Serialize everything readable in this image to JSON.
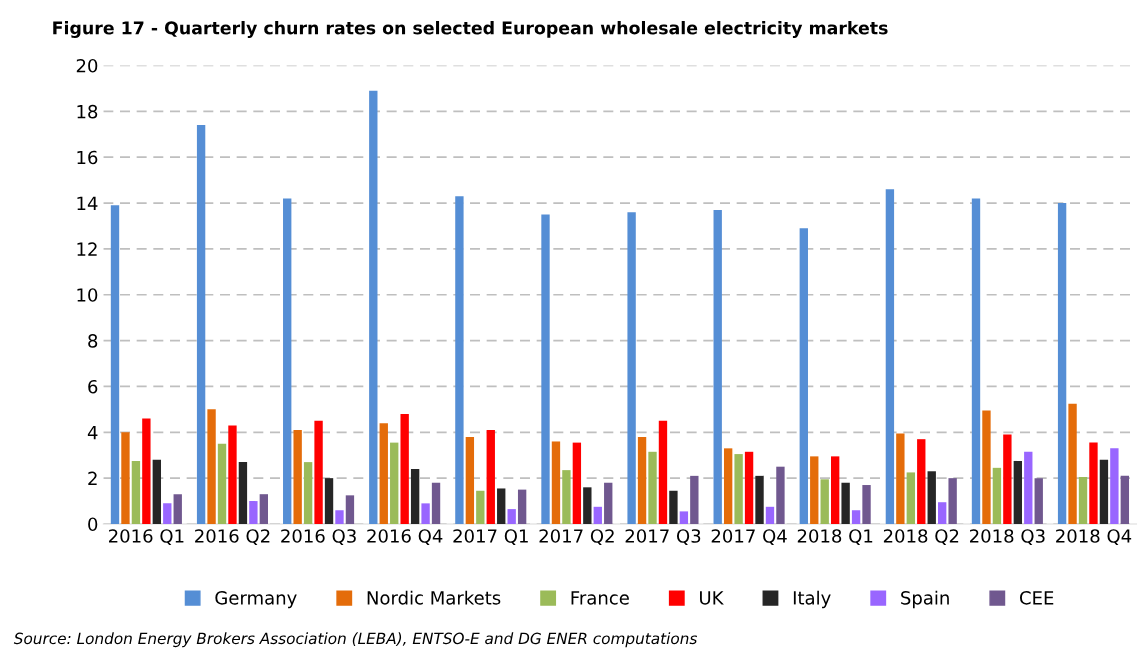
{
  "chart_data": {
    "type": "bar",
    "title": "Figure 17 - Quarterly churn rates on selected European wholesale electricity markets",
    "categories": [
      "2016 Q1",
      "2016 Q2",
      "2016 Q3",
      "2016 Q4",
      "2017 Q1",
      "2017 Q2",
      "2017 Q3",
      "2017 Q4",
      "2018 Q1",
      "2018 Q2",
      "2018 Q3",
      "2018 Q4"
    ],
    "series": [
      {
        "name": "Germany",
        "color": "#558ed5",
        "values": [
          13.9,
          17.4,
          14.2,
          18.9,
          14.3,
          13.5,
          13.6,
          13.7,
          12.9,
          14.6,
          14.2,
          14.0
        ]
      },
      {
        "name": "Nordic Markets",
        "color": "#e46c0a",
        "values": [
          4.0,
          5.0,
          4.1,
          4.4,
          3.8,
          3.6,
          3.8,
          3.3,
          2.95,
          3.95,
          4.95,
          5.25
        ]
      },
      {
        "name": "France",
        "color": "#9bbb59",
        "values": [
          2.75,
          3.5,
          2.7,
          3.55,
          1.45,
          2.35,
          3.15,
          3.05,
          1.95,
          2.25,
          2.45,
          2.05
        ]
      },
      {
        "name": "UK",
        "color": "#ff0000",
        "values": [
          4.6,
          4.3,
          4.5,
          4.8,
          4.1,
          3.55,
          4.5,
          3.15,
          2.95,
          3.7,
          3.9,
          3.55
        ]
      },
      {
        "name": "Italy",
        "color": "#262626",
        "values": [
          2.8,
          2.7,
          2.0,
          2.4,
          1.55,
          1.6,
          1.45,
          2.1,
          1.8,
          2.3,
          2.75,
          2.8
        ]
      },
      {
        "name": "Spain",
        "color": "#9966ff",
        "values": [
          0.9,
          1.0,
          0.6,
          0.9,
          0.65,
          0.75,
          0.55,
          0.75,
          0.6,
          0.95,
          3.15,
          3.3
        ]
      },
      {
        "name": "CEE",
        "color": "#70588f",
        "values": [
          1.3,
          1.3,
          1.25,
          1.8,
          1.5,
          1.8,
          2.1,
          2.5,
          1.7,
          2.0,
          2.0,
          2.1
        ]
      }
    ],
    "ylim": [
      0,
      20
    ],
    "yticks": [
      0,
      2,
      4,
      6,
      8,
      10,
      12,
      14,
      16,
      18,
      20
    ],
    "grid": "y",
    "legend": "bottom",
    "annotations": [
      "Source: London Energy Brokers Association (LEBA), ENTSO-E and DG ENER computations"
    ]
  }
}
